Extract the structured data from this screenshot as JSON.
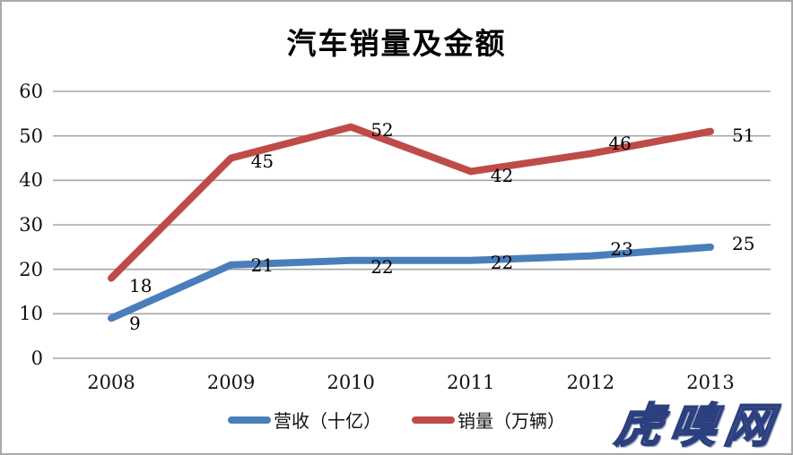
{
  "window": {
    "background": "#ffffff",
    "border_color": "#a9a9a9"
  },
  "chart_data": {
    "type": "line",
    "title": "汽车销量及金额",
    "categories": [
      "2008",
      "2009",
      "2010",
      "2011",
      "2012",
      "2013"
    ],
    "series": [
      {
        "name": "营收（十亿）",
        "color": "#4a7ebb",
        "values": [
          9,
          21,
          22,
          22,
          23,
          25
        ],
        "label_offsets": [
          [
            20,
            6
          ],
          [
            22,
            0
          ],
          [
            22,
            7
          ],
          [
            22,
            2
          ],
          [
            22,
            -8
          ],
          [
            24,
            -4
          ]
        ]
      },
      {
        "name": "销量（万辆）",
        "color": "#be4b48",
        "values": [
          18,
          45,
          52,
          42,
          46,
          51
        ],
        "label_offsets": [
          [
            20,
            8
          ],
          [
            22,
            3
          ],
          [
            22,
            3
          ],
          [
            22,
            5
          ],
          [
            20,
            -12
          ],
          [
            24,
            4
          ]
        ]
      }
    ],
    "xlabel": "",
    "ylabel": "",
    "ylim": [
      0,
      60
    ],
    "yticks": [
      0,
      10,
      20,
      30,
      40,
      50,
      60
    ],
    "grid": true,
    "gridline_color": "#a6a6a6",
    "line_width": 8,
    "legend_position": "bottom",
    "data_labels": true
  },
  "watermark": {
    "text": "虎嗅网",
    "fill": "#8ea3dd",
    "outline": "#2c3f7e"
  }
}
